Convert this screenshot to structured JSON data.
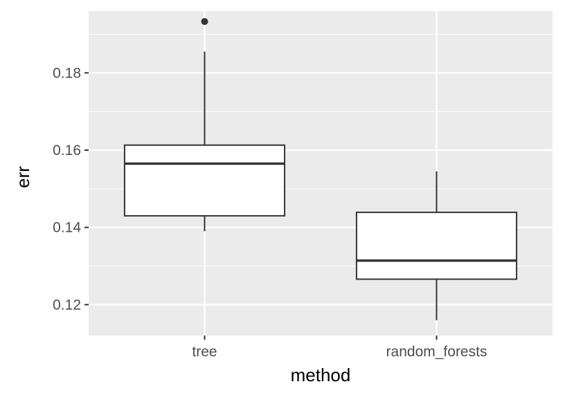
{
  "chart_data": {
    "type": "boxplot",
    "xlabel": "method",
    "ylabel": "err",
    "categories": [
      "tree",
      "random_forests"
    ],
    "ylim": [
      0.112,
      0.196
    ],
    "y_ticks": [
      0.12,
      0.14,
      0.16,
      0.18
    ],
    "y_tick_labels": [
      "0.12",
      "0.14",
      "0.16",
      "0.18"
    ],
    "grid": true,
    "panel_background": "#ebebeb",
    "grid_color": "#ffffff",
    "box_fill": "#ffffff",
    "box_stroke": "#333333",
    "boxes": [
      {
        "category": "tree",
        "whisker_low": 0.139,
        "q1": 0.143,
        "median": 0.1565,
        "q3": 0.1613,
        "whisker_high": 0.1855,
        "outliers": [
          0.1933
        ]
      },
      {
        "category": "random_forests",
        "whisker_low": 0.116,
        "q1": 0.1266,
        "median": 0.1314,
        "q3": 0.1439,
        "whisker_high": 0.1545,
        "outliers": []
      }
    ]
  }
}
